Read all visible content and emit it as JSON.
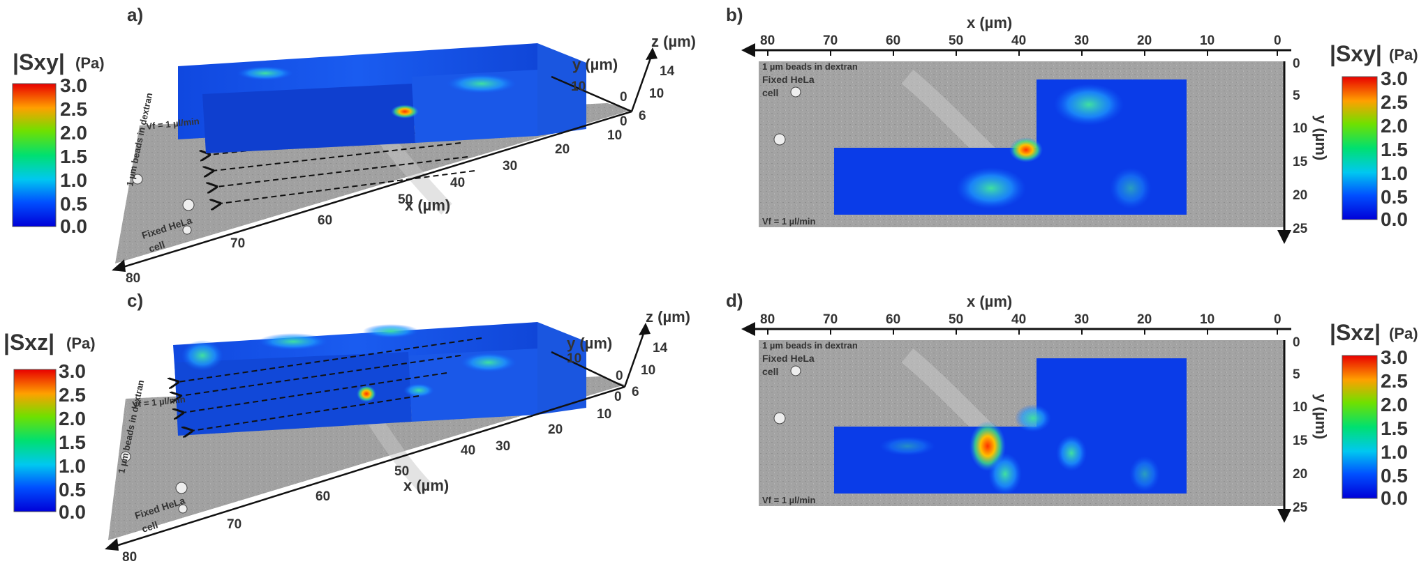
{
  "colors": {
    "low": "#0000dd",
    "mid": "#00e060",
    "high": "#ee1100",
    "axis": "#222222",
    "bead_bg": "#a6a6a6"
  },
  "panels": {
    "a": {
      "label": "a)",
      "colorbar": {
        "title": "|Sxy|",
        "unit": "(Pa)",
        "ticks": [
          "3.0",
          "2.5",
          "2.0",
          "1.5",
          "1.0",
          "0.5",
          "0.0"
        ]
      },
      "x_title": "x (µm)",
      "x_ticks": [
        "10",
        "20",
        "30",
        "40",
        "50",
        "60",
        "70",
        "80"
      ],
      "y_title": "y (µm)",
      "y_ticks": [
        "10",
        "0"
      ],
      "z_title": "z (µm)",
      "z_ticks": [
        "14",
        "10",
        "6"
      ],
      "z_zero": "0",
      "beads_label": "1 µm beads in dextran",
      "cell_label_1": "Fixed HeLa",
      "cell_label_2": "cell",
      "flow_label": "Vf = 1 µl/min"
    },
    "b": {
      "label": "b)",
      "colorbar": {
        "title": "|Sxy|",
        "unit": "(Pa)",
        "ticks": [
          "3.0",
          "2.5",
          "2.0",
          "1.5",
          "1.0",
          "0.5",
          "0.0"
        ]
      },
      "x_title": "x (µm)",
      "x_ticks": [
        "80",
        "70",
        "60",
        "50",
        "40",
        "30",
        "20",
        "10",
        "0"
      ],
      "y_title": "y (µm)",
      "y_ticks": [
        "0",
        "5",
        "10",
        "15",
        "20",
        "25"
      ],
      "beads_label": "1 µm beads in dextran",
      "cell_label_1": "Fixed HeLa",
      "cell_label_2": "cell",
      "flow_label": "Vf = 1 µl/min"
    },
    "c": {
      "label": "c)",
      "colorbar": {
        "title": "|Sxz|",
        "unit": "(Pa)",
        "ticks": [
          "3.0",
          "2.5",
          "2.0",
          "1.5",
          "1.0",
          "0.5",
          "0.0"
        ]
      },
      "x_title": "x (µm)",
      "x_ticks": [
        "10",
        "20",
        "30",
        "40",
        "50",
        "60",
        "70",
        "80"
      ],
      "y_title": "y (µm)",
      "y_ticks": [
        "10",
        "0"
      ],
      "z_title": "z (µm)",
      "z_ticks": [
        "14",
        "10",
        "6"
      ],
      "z_zero": "0",
      "beads_label": "1 µm beads in dextran",
      "cell_label_1": "Fixed HeLa",
      "cell_label_2": "cell",
      "flow_label": "Vf = 1 µl/min"
    },
    "d": {
      "label": "d)",
      "colorbar": {
        "title": "|Sxz|",
        "unit": "(Pa)",
        "ticks": [
          "3.0",
          "2.5",
          "2.0",
          "1.5",
          "1.0",
          "0.5",
          "0.0"
        ]
      },
      "x_title": "x (µm)",
      "x_ticks": [
        "80",
        "70",
        "60",
        "50",
        "40",
        "30",
        "20",
        "10",
        "0"
      ],
      "y_title": "y (µm)",
      "y_ticks": [
        "0",
        "5",
        "10",
        "15",
        "20",
        "25"
      ],
      "beads_label": "1 µm beads in dextran",
      "cell_label_1": "Fixed HeLa",
      "cell_label_2": "cell",
      "flow_label": "Vf = 1 µl/min"
    }
  }
}
